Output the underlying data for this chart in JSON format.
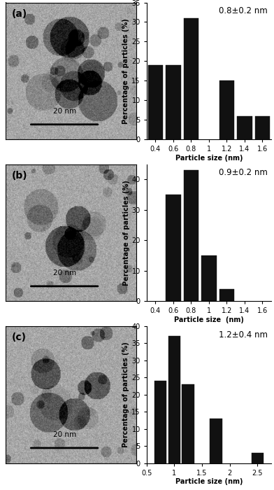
{
  "panel_a": {
    "title": "0.8±0.2 nm",
    "bar_centers": [
      0.4,
      0.6,
      0.8,
      1.0,
      1.2,
      1.4,
      1.6
    ],
    "bar_heights": [
      19,
      19,
      31,
      0,
      15,
      6,
      6
    ],
    "xlim": [
      0.3,
      1.7
    ],
    "xticks": [
      0.4,
      0.6,
      0.8,
      1.0,
      1.2,
      1.4,
      1.6
    ],
    "ylim": [
      0,
      35
    ],
    "yticks": [
      0,
      5,
      10,
      15,
      20,
      25,
      30,
      35
    ],
    "xlabel": "Particle size (nm)",
    "ylabel": "Percentage of particles (%)",
    "bar_width": 0.17,
    "label": "(a)"
  },
  "panel_b": {
    "title": "0.9±0.2 nm",
    "bar_centers": [
      0.6,
      0.8,
      1.0,
      1.2,
      1.4
    ],
    "bar_heights": [
      35,
      43,
      15,
      4,
      0
    ],
    "xlim": [
      0.3,
      1.7
    ],
    "xticks": [
      0.4,
      0.6,
      0.8,
      1.0,
      1.2,
      1.4,
      1.6
    ],
    "ylim": [
      0,
      45
    ],
    "yticks": [
      0,
      10,
      20,
      30,
      40
    ],
    "xlabel": "Particle size  (nm)",
    "ylabel": "Percentage of particles (%)",
    "bar_width": 0.17,
    "label": "(b)"
  },
  "panel_c": {
    "title": "1.2±0.4 nm",
    "bar_centers": [
      0.75,
      1.0,
      1.25,
      1.75,
      2.5
    ],
    "bar_heights": [
      24,
      37,
      23,
      13,
      3
    ],
    "xlim": [
      0.5,
      2.75
    ],
    "xticks": [
      0.5,
      1.0,
      1.5,
      2.0,
      2.5
    ],
    "ylim": [
      0,
      40
    ],
    "yticks": [
      0,
      5,
      10,
      15,
      20,
      25,
      30,
      35,
      40
    ],
    "xlabel": "Particle size (nm)",
    "ylabel": "Percentage of particles (%)",
    "bar_width": 0.22,
    "label": "(c)"
  },
  "scale_bar_text": "20 nm",
  "bar_color": "#111111",
  "bg_color": "#ffffff"
}
